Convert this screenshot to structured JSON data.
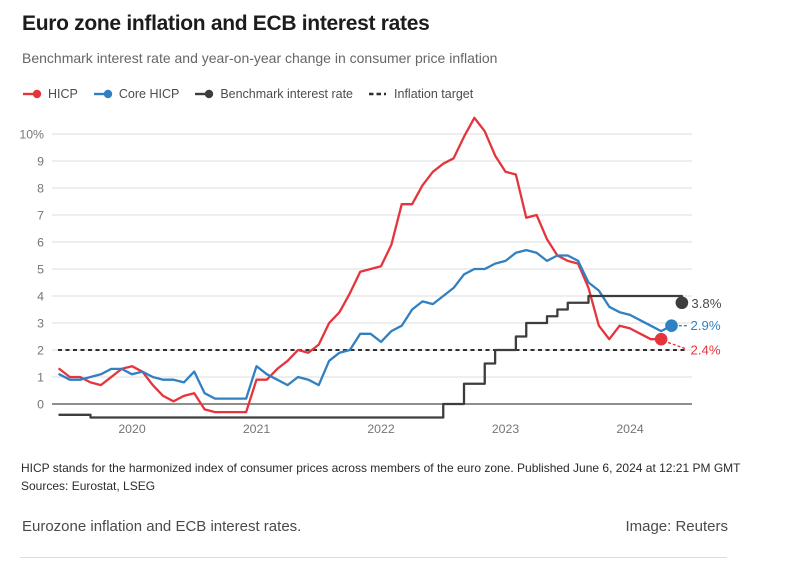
{
  "header": {
    "title": "Euro zone inflation and ECB interest rates",
    "subtitle": "Benchmark interest rate and year-on-year change in consumer price inflation"
  },
  "legend": [
    {
      "label": "HICP",
      "color": "#e5353c",
      "marker": "line-dot"
    },
    {
      "label": "Core HICP",
      "color": "#3080c2",
      "marker": "line-dot"
    },
    {
      "label": "Benchmark interest rate",
      "color": "#3d3d3d",
      "marker": "line-dot"
    },
    {
      "label": "Inflation target",
      "color": "#2f2f2f",
      "marker": "dashes"
    }
  ],
  "chart_data": {
    "type": "line",
    "x_axis": {
      "start": "2019-06",
      "step": "month",
      "ticks": [
        {
          "label": "2020",
          "month_index": 7
        },
        {
          "label": "2021",
          "month_index": 19
        },
        {
          "label": "2022",
          "month_index": 31
        },
        {
          "label": "2023",
          "month_index": 43
        },
        {
          "label": "2024",
          "month_index": 55
        }
      ]
    },
    "y_axis": {
      "unit": "%",
      "range": [
        -0.6,
        10.8
      ],
      "ticks": [
        {
          "value": 10,
          "label": "10%"
        },
        {
          "value": 9,
          "label": "9"
        },
        {
          "value": 8,
          "label": "8"
        },
        {
          "value": 7,
          "label": "7"
        },
        {
          "value": 6,
          "label": "6"
        },
        {
          "value": 5,
          "label": "5"
        },
        {
          "value": 4,
          "label": "4"
        },
        {
          "value": 3,
          "label": "3"
        },
        {
          "value": 2,
          "label": "2"
        },
        {
          "value": 1,
          "label": "1"
        },
        {
          "value": 0,
          "label": "0"
        }
      ]
    },
    "grid": true,
    "target_line": {
      "value": 2,
      "label": "Inflation target",
      "style": "dashed"
    },
    "series": [
      {
        "name": "HICP",
        "color": "#e5353c",
        "step": false,
        "start_month_index": 0,
        "end_label": "2.4%",
        "values": [
          1.3,
          1.0,
          1.0,
          0.8,
          0.7,
          1.0,
          1.3,
          1.4,
          1.2,
          0.7,
          0.3,
          0.1,
          0.3,
          0.4,
          -0.2,
          -0.3,
          -0.3,
          -0.3,
          -0.3,
          0.9,
          0.9,
          1.3,
          1.6,
          2.0,
          1.9,
          2.2,
          3.0,
          3.4,
          4.1,
          4.9,
          5.0,
          5.1,
          5.9,
          7.4,
          7.4,
          8.1,
          8.6,
          8.9,
          9.1,
          9.9,
          10.6,
          10.1,
          9.2,
          8.6,
          8.5,
          6.9,
          7.0,
          6.1,
          5.5,
          5.3,
          5.2,
          4.3,
          2.9,
          2.4,
          2.9,
          2.8,
          2.6,
          2.4,
          2.4
        ]
      },
      {
        "name": "Core HICP",
        "color": "#3080c2",
        "step": false,
        "start_month_index": 0,
        "end_label": "2.9%",
        "values": [
          1.1,
          0.9,
          0.9,
          1.0,
          1.1,
          1.3,
          1.3,
          1.1,
          1.2,
          1.0,
          0.9,
          0.9,
          0.8,
          1.2,
          0.4,
          0.2,
          0.2,
          0.2,
          0.2,
          1.4,
          1.1,
          0.9,
          0.7,
          1.0,
          0.9,
          0.7,
          1.6,
          1.9,
          2.0,
          2.6,
          2.6,
          2.3,
          2.7,
          2.9,
          3.5,
          3.8,
          3.7,
          4.0,
          4.3,
          4.8,
          5.0,
          5.0,
          5.2,
          5.3,
          5.6,
          5.7,
          5.6,
          5.3,
          5.5,
          5.5,
          5.3,
          4.5,
          4.2,
          3.6,
          3.4,
          3.3,
          3.1,
          2.9,
          2.7,
          2.9
        ]
      },
      {
        "name": "Benchmark interest rate",
        "color": "#3d3d3d",
        "step": true,
        "start_month_index": 0,
        "end_label": "3.8%",
        "values": [
          -0.4,
          -0.4,
          -0.4,
          -0.5,
          -0.5,
          -0.5,
          -0.5,
          -0.5,
          -0.5,
          -0.5,
          -0.5,
          -0.5,
          -0.5,
          -0.5,
          -0.5,
          -0.5,
          -0.5,
          -0.5,
          -0.5,
          -0.5,
          -0.5,
          -0.5,
          -0.5,
          -0.5,
          -0.5,
          -0.5,
          -0.5,
          -0.5,
          -0.5,
          -0.5,
          -0.5,
          -0.5,
          -0.5,
          -0.5,
          -0.5,
          -0.5,
          -0.5,
          0.0,
          0.0,
          0.75,
          0.75,
          1.5,
          2.0,
          2.0,
          2.5,
          3.0,
          3.0,
          3.25,
          3.5,
          3.75,
          3.75,
          4.0,
          4.0,
          4.0,
          4.0,
          4.0,
          4.0,
          4.0,
          4.0,
          4.0,
          3.75
        ]
      }
    ]
  },
  "footnotes": {
    "note": "HICP stands for the harmonized index of consumer prices across members of the euro zone. Published June 6, 2024 at 12:21 PM GMT",
    "sources": "Sources: Eurostat, LSEG"
  },
  "caption": {
    "text": "Eurozone inflation and ECB interest rates.",
    "credit": "Image: Reuters"
  }
}
